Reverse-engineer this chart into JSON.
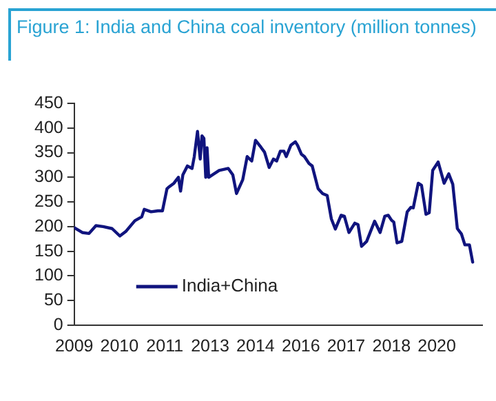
{
  "chart_data": {
    "type": "line",
    "title": "Figure 1: India and China coal inventory (million tonnes)",
    "xlim": [
      "2009-01",
      "2021-10"
    ],
    "xticks": [
      {
        "value": "2009-01",
        "label": "2009"
      },
      {
        "value": "2010-06",
        "label": "2010"
      },
      {
        "value": "2011-11",
        "label": "2011"
      },
      {
        "value": "2013-04",
        "label": "2013"
      },
      {
        "value": "2014-09",
        "label": "2014"
      },
      {
        "value": "2016-02",
        "label": "2016"
      },
      {
        "value": "2017-07",
        "label": "2017"
      },
      {
        "value": "2018-12",
        "label": "2018"
      },
      {
        "value": "2020-05",
        "label": "2020"
      }
    ],
    "ylim": [
      0,
      450
    ],
    "yticks": [
      0,
      50,
      100,
      150,
      200,
      250,
      300,
      350,
      400,
      450
    ],
    "grid": false,
    "legend": "bottom left",
    "marker": "none",
    "line_style": "solid",
    "series": [
      {
        "name": "India+China",
        "color": "#10147e",
        "x": [
          "2009-01-01",
          "2009-04-03",
          "2009-06-19",
          "2009-09-06",
          "2009-11-27",
          "2010-03-09",
          "2010-06-06",
          "2010-08-12",
          "2010-11-24",
          "2011-02-11",
          "2011-03-11",
          "2011-05-28",
          "2011-08-14",
          "2011-10-05",
          "2011-11-26",
          "2011-12-22",
          "2012-02-13",
          "2012-04-04",
          "2012-04-29",
          "2012-05-25",
          "2012-07-16",
          "2012-09-07",
          "2012-10-02",
          "2012-11-08",
          "2012-12-09",
          "2012-12-29",
          "2013-01-20",
          "2013-02-10",
          "2013-02-25",
          "2013-03-16",
          "2013-07-13",
          "2013-10-25",
          "2013-12-16",
          "2014-01-27",
          "2014-04-08",
          "2014-05-29",
          "2014-07-20",
          "2014-09-01",
          "2014-11-02",
          "2014-12-13",
          "2015-02-04",
          "2015-03-25",
          "2015-04-30",
          "2015-06-11",
          "2015-07-22",
          "2015-08-18",
          "2015-10-09",
          "2015-11-30",
          "2015-12-25",
          "2016-02-06",
          "2016-03-12",
          "2016-05-03",
          "2016-06-09",
          "2016-08-15",
          "2016-10-06",
          "2016-11-27",
          "2017-01-13",
          "2017-02-28",
          "2017-05-05",
          "2017-06-11",
          "2017-08-02",
          "2017-10-08",
          "2017-11-14",
          "2017-12-24",
          "2018-02-20",
          "2018-04-12",
          "2018-05-22",
          "2018-07-24",
          "2018-09-15",
          "2018-10-25",
          "2018-12-01",
          "2018-12-27",
          "2019-02-02",
          "2019-03-28",
          "2019-05-29",
          "2019-07-10",
          "2019-08-06",
          "2019-10-02",
          "2019-11-08",
          "2019-12-29",
          "2020-02-04",
          "2020-03-15",
          "2020-05-16",
          "2020-07-23",
          "2020-09-14",
          "2020-10-30",
          "2020-12-21",
          "2021-02-06",
          "2021-03-17",
          "2021-05-08",
          "2021-06-14"
        ],
        "values": [
          198,
          188,
          186,
          202,
          200,
          196,
          181,
          190,
          212,
          220,
          235,
          230,
          232,
          232,
          277,
          281,
          288,
          300,
          272,
          305,
          323,
          318,
          342,
          393,
          337,
          384,
          379,
          300,
          360,
          300,
          314,
          318,
          305,
          267,
          295,
          342,
          333,
          375,
          361,
          351,
          320,
          337,
          333,
          353,
          353,
          342,
          365,
          372,
          365,
          347,
          342,
          328,
          323,
          277,
          267,
          263,
          216,
          195,
          223,
          221,
          188,
          207,
          204,
          160,
          170,
          193,
          211,
          188,
          221,
          223,
          213,
          209,
          167,
          170,
          230,
          239,
          238,
          288,
          284,
          225,
          228,
          314,
          331,
          288,
          307,
          286,
          196,
          185,
          163,
          163,
          128
        ]
      }
    ]
  }
}
